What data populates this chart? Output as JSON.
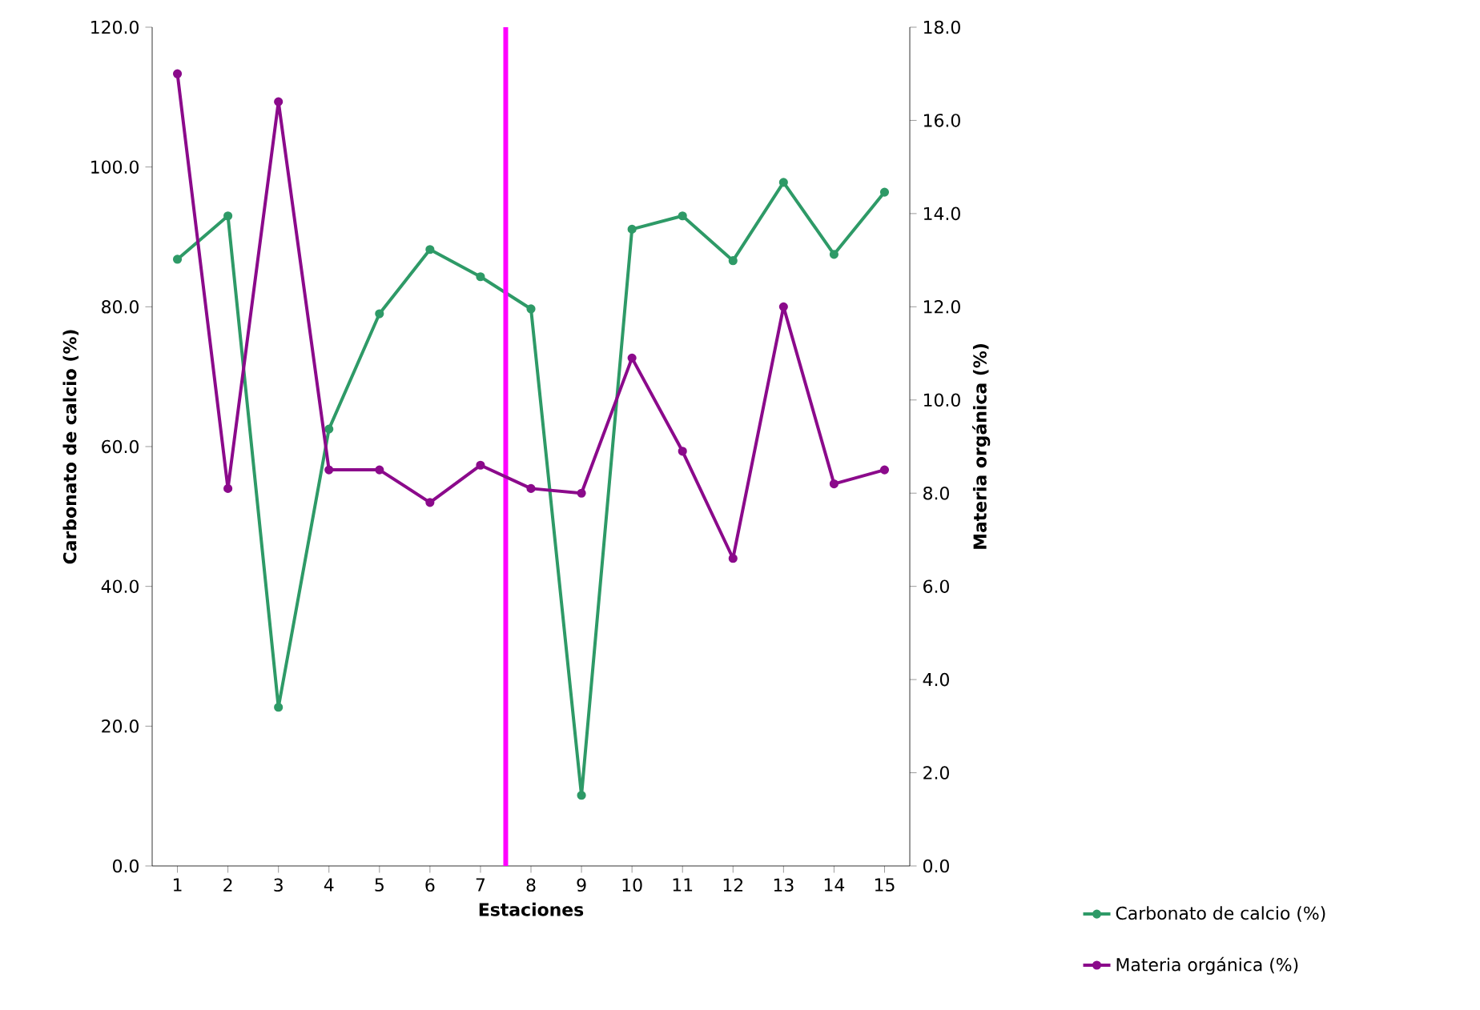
{
  "chart_data": {
    "type": "line",
    "xlabel": "Estaciones",
    "ylabel": "Carbonato de calcio (%)",
    "y2label": "Materia orgánica (%)",
    "x": [
      1,
      2,
      3,
      4,
      5,
      6,
      7,
      8,
      9,
      10,
      11,
      12,
      13,
      14,
      15
    ],
    "xlim": [
      0.5,
      15.5
    ],
    "xticks": [
      1,
      2,
      3,
      4,
      5,
      6,
      7,
      8,
      9,
      10,
      11,
      12,
      13,
      14,
      15
    ],
    "ylim": [
      0,
      120
    ],
    "yticks": [
      {
        "value": 0,
        "label": "0.0"
      },
      {
        "value": 20,
        "label": "20.0"
      },
      {
        "value": 40,
        "label": "40.0"
      },
      {
        "value": 60,
        "label": "60.0"
      },
      {
        "value": 80,
        "label": "80.0"
      },
      {
        "value": 100,
        "label": "100.0"
      },
      {
        "value": 120,
        "label": "120.0"
      }
    ],
    "y2lim": [
      0,
      18
    ],
    "y2ticks": [
      {
        "value": 0,
        "label": "0.0"
      },
      {
        "value": 2,
        "label": "2.0"
      },
      {
        "value": 4,
        "label": "4.0"
      },
      {
        "value": 6,
        "label": "6.0"
      },
      {
        "value": 8,
        "label": "8.0"
      },
      {
        "value": 10,
        "label": "10.0"
      },
      {
        "value": 12,
        "label": "12.0"
      },
      {
        "value": 14,
        "label": "14.0"
      },
      {
        "value": 16,
        "label": "16.0"
      },
      {
        "value": 18,
        "label": "18.0"
      }
    ],
    "series": [
      {
        "name": "Carbonato de calcio (%)",
        "color": "#2e9a67",
        "values": [
          86.8,
          93.0,
          22.7,
          62.5,
          79.0,
          88.2,
          84.3,
          79.7,
          10.1,
          91.1,
          93.0,
          86.6,
          97.8,
          87.5,
          96.4
        ]
      },
      {
        "name": "Materia orgánica (%)",
        "color": "#8b0a8b",
        "axis": "y2",
        "values": [
          17.0,
          8.1,
          16.4,
          8.5,
          8.5,
          7.8,
          8.6,
          8.1,
          8.0,
          10.9,
          8.9,
          6.6,
          12.0,
          8.2,
          8.5
        ]
      }
    ],
    "ref_lines": [
      {
        "axis": "x",
        "value": 7.5,
        "color": "#ff00ff"
      }
    ],
    "marker": "circle",
    "grid": false,
    "legend": "bottom right"
  }
}
